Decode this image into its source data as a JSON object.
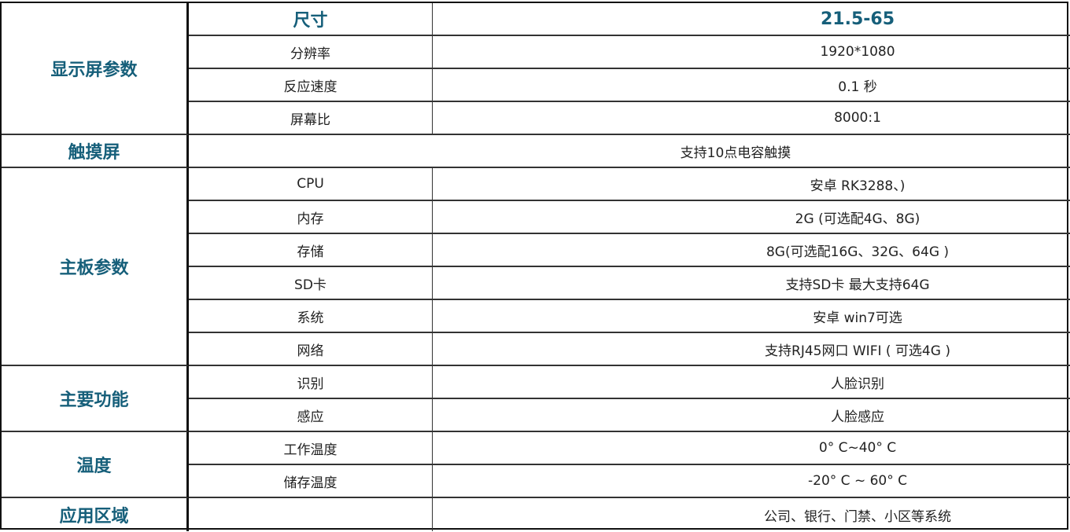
{
  "groups": [
    {
      "label": "显示屏参数"
    },
    {
      "label": "触摸屏"
    },
    {
      "label": "主板参数"
    },
    {
      "label": "主要功能"
    },
    {
      "label": "温度"
    },
    {
      "label": "应用区域"
    }
  ],
  "rows": [
    {
      "key": "尺寸",
      "value": "21.5-65"
    },
    {
      "key": "分辨率",
      "value": "1920*1080"
    },
    {
      "key": "反应速度",
      "value": "0.1 秒"
    },
    {
      "key": "屏幕比",
      "value": "8000:1"
    },
    {
      "key": "",
      "value": "支持10点电容触摸"
    },
    {
      "key": "CPU",
      "value": "安卓 RK3288、)"
    },
    {
      "key": "内存",
      "value": "2G (可选配4G、8G)"
    },
    {
      "key": "存储",
      "value": "8G(可选配16G、32G、64G )"
    },
    {
      "key": "SD卡",
      "value": "支持SD卡 最大支持64G"
    },
    {
      "key": "系统",
      "value": "安卓  win7可选"
    },
    {
      "key": "网络",
      "value": "支持RJ45网口   WIFI  ( 可选4G )"
    },
    {
      "key": "识别",
      "value": "人脸识别"
    },
    {
      "key": "感应",
      "value": "人脸感应"
    },
    {
      "key": "工作温度",
      "value": "0°  C~40°  C"
    },
    {
      "key": "储存温度",
      "value": "-20°  C ~ 60°  C"
    },
    {
      "key": "",
      "value": "公司、银行、门禁、小区等系统"
    }
  ],
  "colors": {
    "heading": "#165f7a",
    "border": "#111111"
  }
}
